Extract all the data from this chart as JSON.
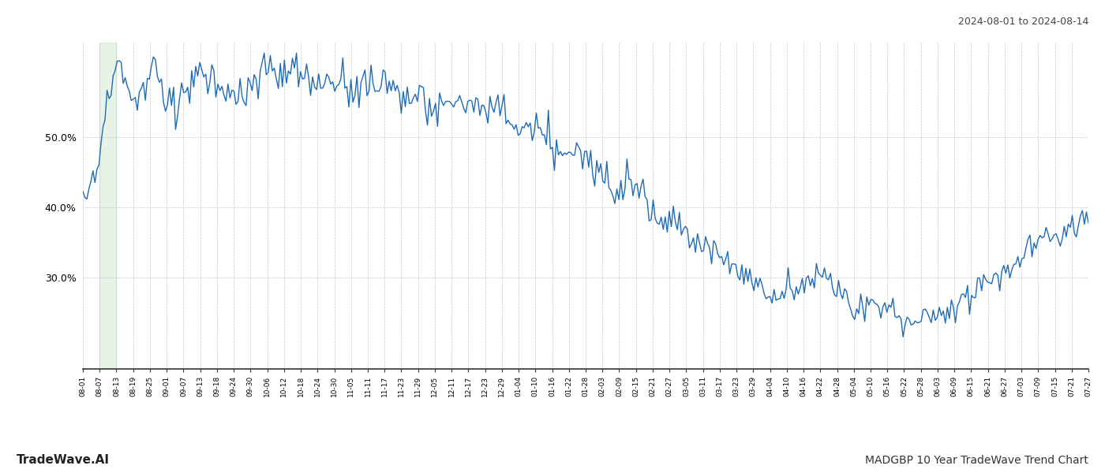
{
  "title_top_right": "2024-08-01 to 2024-08-14",
  "title_bottom_left": "TradeWave.AI",
  "title_bottom_right": "MADGBP 10 Year TradeWave Trend Chart",
  "background_color": "#ffffff",
  "line_color": "#1f6bb5",
  "highlight_color": "#c8e6c9",
  "highlight_alpha": 0.45,
  "highlight_xstart": 1,
  "highlight_xend": 2,
  "yticks": [
    0.3,
    0.4,
    0.5
  ],
  "ytick_labels": [
    "30.0%",
    "40.0%",
    "50.0%"
  ],
  "ylim": [
    0.17,
    0.635
  ],
  "grid_color": "#bbbbbb",
  "grid_linestyle": "--",
  "xtick_labels": [
    "08-01",
    "08-07",
    "08-13",
    "08-19",
    "08-25",
    "09-01",
    "09-07",
    "09-13",
    "09-18",
    "09-24",
    "09-30",
    "10-06",
    "10-12",
    "10-18",
    "10-24",
    "10-30",
    "11-05",
    "11-11",
    "11-17",
    "11-23",
    "11-29",
    "12-05",
    "12-11",
    "12-17",
    "12-23",
    "12-29",
    "01-04",
    "01-10",
    "01-16",
    "01-22",
    "01-28",
    "02-03",
    "02-09",
    "02-15",
    "02-21",
    "02-27",
    "03-05",
    "03-11",
    "03-17",
    "03-23",
    "03-29",
    "04-04",
    "04-10",
    "04-16",
    "04-22",
    "04-28",
    "05-04",
    "05-10",
    "05-16",
    "05-22",
    "05-28",
    "06-03",
    "06-09",
    "06-15",
    "06-21",
    "06-27",
    "07-03",
    "07-09",
    "07-15",
    "07-21",
    "07-27"
  ],
  "n_data_points": 500
}
